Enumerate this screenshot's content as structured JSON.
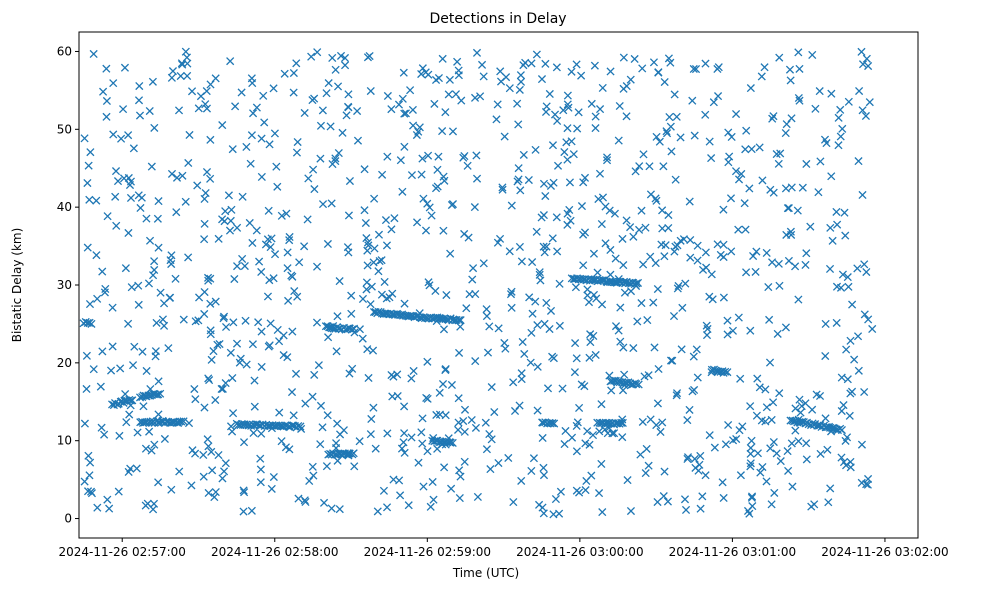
{
  "chart_data": {
    "type": "scatter",
    "title": "Detections in Delay",
    "xlabel": "Time (UTC)",
    "ylabel": "Bistatic Delay (km)",
    "marker": "x",
    "color": "#1f77b4",
    "xlim_seconds": [
      -17,
      313
    ],
    "ylim": [
      -2.5,
      62.5
    ],
    "x_ticks": [
      {
        "seconds": 0,
        "label": "2024-11-26 02:57:00"
      },
      {
        "seconds": 60,
        "label": "2024-11-26 02:58:00"
      },
      {
        "seconds": 120,
        "label": "2024-11-26 02:59:00"
      },
      {
        "seconds": 180,
        "label": "2024-11-26 03:00:00"
      },
      {
        "seconds": 240,
        "label": "2024-11-26 03:01:00"
      },
      {
        "seconds": 300,
        "label": "2024-11-26 03:02:00"
      }
    ],
    "y_ticks": [
      0,
      10,
      20,
      30,
      40,
      50,
      60
    ],
    "time_origin": "2024-11-26 02:57:00",
    "time_range_seconds": [
      -15,
      295
    ],
    "delay_range_km": [
      0.5,
      60
    ],
    "approximate_detection_count": 1500,
    "tracks": [
      {
        "t_start": -15,
        "t_end": -12,
        "y_start": 25.2,
        "y_end": 25.0
      },
      {
        "t_start": -4,
        "t_end": 4,
        "y_start": 14.6,
        "y_end": 15.3
      },
      {
        "t_start": 7,
        "t_end": 15,
        "y_start": 15.6,
        "y_end": 16.1
      },
      {
        "t_start": 7,
        "t_end": 24,
        "y_start": 12.4,
        "y_end": 12.4
      },
      {
        "t_start": 45,
        "t_end": 70,
        "y_start": 12.1,
        "y_end": 11.8
      },
      {
        "t_start": 80,
        "t_end": 91,
        "y_start": 24.6,
        "y_end": 24.3
      },
      {
        "t_start": 81,
        "t_end": 91,
        "y_start": 8.3,
        "y_end": 8.3
      },
      {
        "t_start": 99,
        "t_end": 119,
        "y_start": 26.5,
        "y_end": 25.8
      },
      {
        "t_start": 120,
        "t_end": 133,
        "y_start": 25.8,
        "y_end": 25.5
      },
      {
        "t_start": 122,
        "t_end": 130,
        "y_start": 10.0,
        "y_end": 9.8
      },
      {
        "t_start": 165,
        "t_end": 170,
        "y_start": 12.3,
        "y_end": 12.3
      },
      {
        "t_start": 177,
        "t_end": 203,
        "y_start": 30.8,
        "y_end": 30.2
      },
      {
        "t_start": 187,
        "t_end": 197,
        "y_start": 12.2,
        "y_end": 12.2
      },
      {
        "t_start": 192,
        "t_end": 203,
        "y_start": 17.7,
        "y_end": 17.2
      },
      {
        "t_start": 232,
        "t_end": 238,
        "y_start": 19.1,
        "y_end": 18.7
      },
      {
        "t_start": 263,
        "t_end": 283,
        "y_start": 12.6,
        "y_end": 11.4
      }
    ]
  }
}
